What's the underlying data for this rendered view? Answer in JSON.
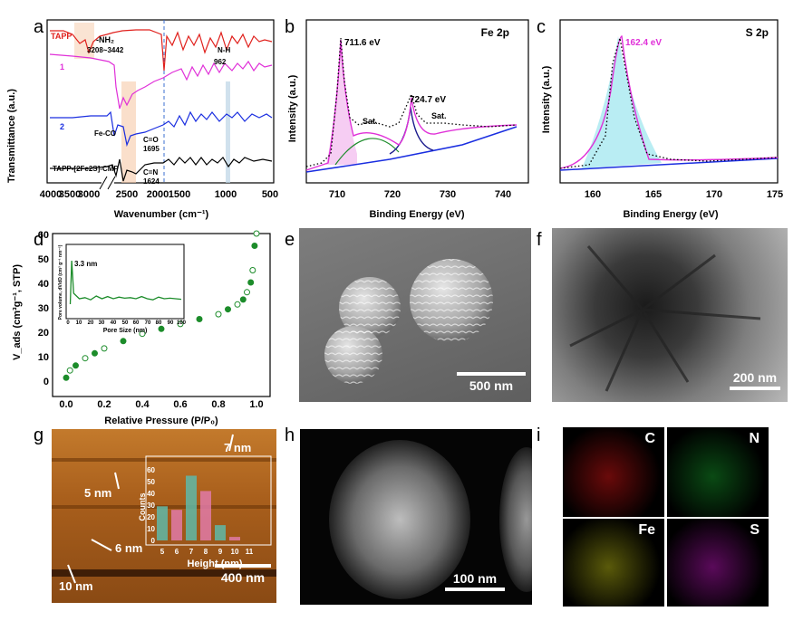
{
  "panels": {
    "a": {
      "label": "a",
      "xlabel": "Wavenumber (cm⁻¹)",
      "ylabel": "Transmittance (a.u.)",
      "xticks": [
        "4000",
        "3500",
        "3000",
        "2500",
        "2000",
        "1500",
        "1000",
        "500"
      ],
      "curves": [
        "TAPP",
        "1",
        "2",
        "TAPP-[2Fe2S]-CMP"
      ],
      "annotations": {
        "nh2": "-NH₂",
        "nh2_range": "3208~3442",
        "nh": "N-H",
        "nh_val": "962",
        "feco": "Fe-CO",
        "co": "C=O",
        "co_val": "1695",
        "cn": "C=N",
        "cn_val": "1624"
      }
    },
    "b": {
      "label": "b",
      "title": "Fe 2p",
      "xlabel": "Binding Energy (eV)",
      "ylabel": "Intensity (a.u.)",
      "xticks": [
        "710",
        "720",
        "730",
        "740"
      ],
      "annotations": {
        "p1": "711.6 eV",
        "p2": "724.7 eV",
        "sat1": "Sat.",
        "sat2": "Sat."
      }
    },
    "c": {
      "label": "c",
      "title": "S 2p",
      "xlabel": "Binding Energy (eV)",
      "ylabel": "Intensity (a.u.)",
      "xticks": [
        "160",
        "165",
        "170",
        "175"
      ],
      "annotations": {
        "p1": "162.4 eV"
      }
    },
    "d": {
      "label": "d",
      "xlabel": "Relative Pressure (P/P₀)",
      "ylabel": "V_ads (cm³g⁻¹, STP)",
      "xticks": [
        "0.0",
        "0.2",
        "0.4",
        "0.6",
        "0.8",
        "1.0"
      ],
      "yticks": [
        "0",
        "10",
        "20",
        "30",
        "40",
        "50",
        "60"
      ],
      "inset": {
        "ylabel": "Pore volume, dV/dD (cm³ g⁻¹ nm⁻¹)",
        "xlabel": "Pore Size (nm)",
        "xticks": [
          "0",
          "10",
          "20",
          "30",
          "40",
          "50",
          "60",
          "70",
          "80",
          "90",
          "100"
        ],
        "peak": "3.3 nm"
      }
    },
    "e": {
      "label": "e",
      "scale": "500 nm"
    },
    "f": {
      "label": "f",
      "scale": "200 nm"
    },
    "g": {
      "label": "g",
      "scale": "400 nm",
      "heights": [
        "7 nm",
        "5 nm",
        "6 nm",
        "10 nm"
      ],
      "inset": {
        "xlabel": "Height (nm)",
        "ylabel": "Counts",
        "xticks": [
          "5",
          "6",
          "7",
          "8",
          "9",
          "10",
          "11"
        ],
        "yticks": [
          "0",
          "10",
          "20",
          "30",
          "40",
          "50",
          "60"
        ]
      }
    },
    "h": {
      "label": "h",
      "scale": "100 nm"
    },
    "i": {
      "label": "i",
      "maps": [
        "C",
        "N",
        "Fe",
        "S"
      ]
    }
  },
  "chart_data": [
    {
      "type": "line",
      "panel": "a",
      "xlabel": "Wavenumber (cm⁻¹)",
      "ylabel": "Transmittance (a.u.)",
      "xlim": [
        4000,
        500
      ],
      "series": [
        {
          "name": "TAPP"
        },
        {
          "name": "1"
        },
        {
          "name": "2"
        },
        {
          "name": "TAPP-[2Fe2S]-CMP"
        }
      ]
    },
    {
      "type": "line",
      "panel": "b",
      "title": "Fe 2p",
      "xlim": [
        705,
        745
      ],
      "peaks": [
        {
          "x": 711.6,
          "label": "711.6 eV"
        },
        {
          "x": 724.7,
          "label": "724.7 eV"
        }
      ]
    },
    {
      "type": "line",
      "panel": "c",
      "title": "S 2p",
      "xlim": [
        157,
        175
      ],
      "peaks": [
        {
          "x": 162.4,
          "label": "162.4 eV"
        }
      ]
    },
    {
      "type": "scatter",
      "panel": "d",
      "xlim": [
        0,
        1
      ],
      "ylim": [
        0,
        62
      ],
      "x": [
        0.0,
        0.02,
        0.05,
        0.1,
        0.15,
        0.2,
        0.3,
        0.4,
        0.5,
        0.6,
        0.7,
        0.8,
        0.85,
        0.9,
        0.93,
        0.95,
        0.97,
        0.98,
        0.99,
        1.0
      ],
      "y": [
        1,
        4,
        6,
        9,
        11,
        13,
        16,
        19,
        21,
        23,
        25,
        27,
        29,
        31,
        33,
        36,
        40,
        45,
        55,
        60
      ]
    },
    {
      "type": "line",
      "panel": "d-inset",
      "xlim": [
        0,
        100
      ],
      "x": [
        2,
        3.3,
        5,
        10,
        15,
        20,
        25,
        30,
        35,
        40,
        45,
        50,
        55,
        60,
        65,
        70,
        75,
        80,
        85,
        90,
        95,
        100
      ],
      "y": [
        0.2,
        1.0,
        0.4,
        0.3,
        0.32,
        0.28,
        0.35,
        0.3,
        0.34,
        0.3,
        0.33,
        0.31,
        0.32,
        0.3,
        0.34,
        0.3,
        0.28,
        0.33,
        0.3,
        0.31,
        0.3,
        0.29
      ]
    },
    {
      "type": "bar",
      "panel": "g-inset",
      "categories": [
        "5",
        "6",
        "7",
        "8",
        "9",
        "10"
      ],
      "values": [
        29,
        26,
        55,
        42,
        13,
        3
      ],
      "ylim": [
        0,
        60
      ]
    }
  ]
}
